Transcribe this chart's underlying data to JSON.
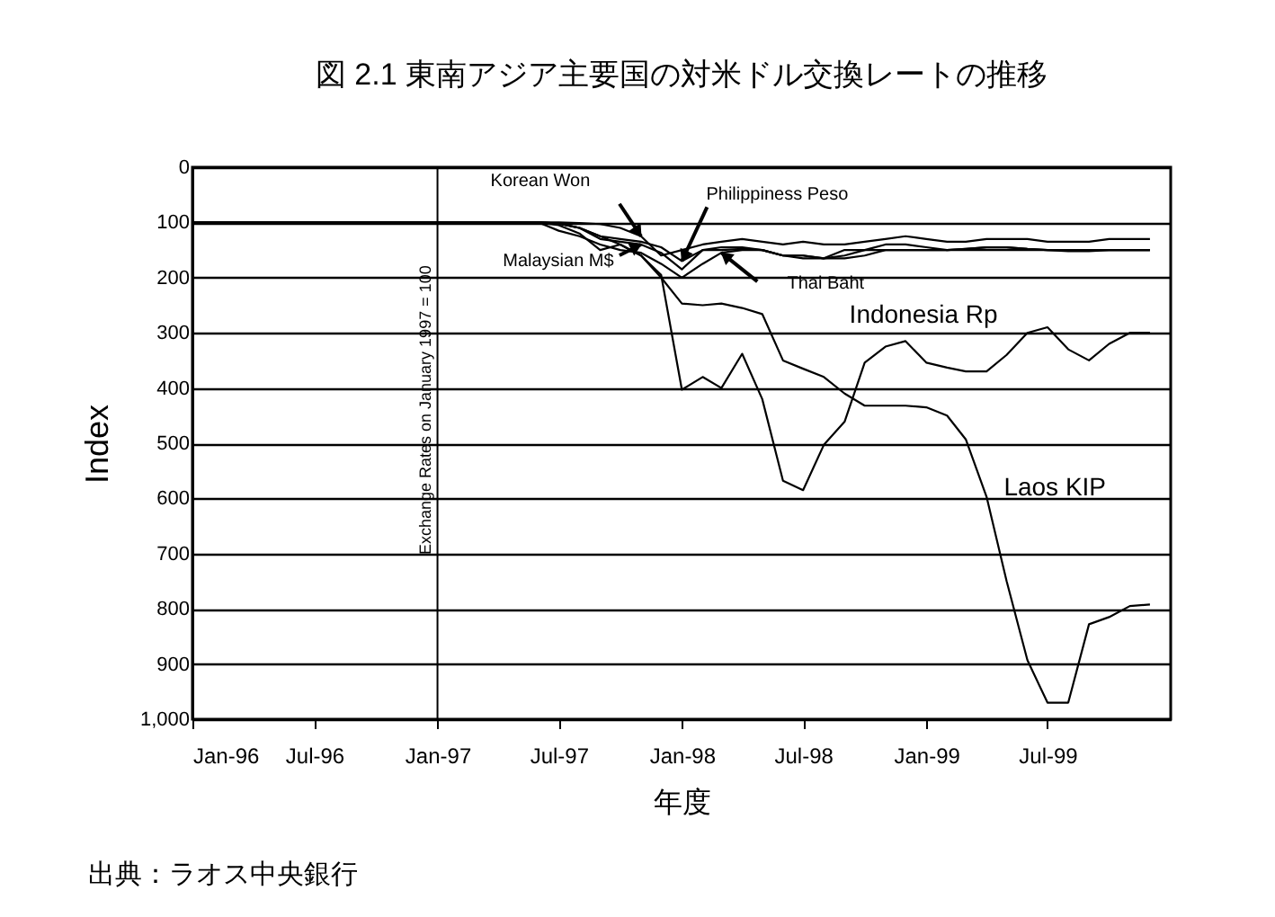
{
  "chart_data": {
    "type": "line",
    "title": "図 2.1  東南アジア主要国の対米ドル交換レートの推移",
    "xlabel": "年度",
    "ylabel": "Index",
    "annotations": [
      "出典：ラオス中央銀行"
    ],
    "x": [
      "1996-01",
      "1996-02",
      "1996-03",
      "1996-04",
      "1996-05",
      "1996-06",
      "1996-07",
      "1996-08",
      "1996-09",
      "1996-10",
      "1996-11",
      "1996-12",
      "1997-01",
      "1997-02",
      "1997-03",
      "1997-04",
      "1997-05",
      "1997-06",
      "1997-07",
      "1997-08",
      "1997-09",
      "1997-10",
      "1997-11",
      "1997-12",
      "1998-01",
      "1998-02",
      "1998-03",
      "1998-04",
      "1998-05",
      "1998-06",
      "1998-07",
      "1998-08",
      "1998-09",
      "1998-10",
      "1998-11",
      "1998-12",
      "1999-01",
      "1999-02",
      "1999-03",
      "1999-04",
      "1999-05",
      "1999-06",
      "1999-07",
      "1999-08",
      "1999-09",
      "1999-10",
      "1999-11",
      "1999-12"
    ],
    "series": [
      {
        "name": "Korean Won",
        "color": "#000000",
        "values": [
          100,
          100,
          100,
          100,
          100,
          100,
          100,
          100,
          100,
          100,
          100,
          100,
          100,
          100,
          100,
          100,
          100,
          100,
          100,
          101,
          103,
          110,
          125,
          160,
          150,
          140,
          135,
          130,
          135,
          140,
          135,
          140,
          140,
          135,
          130,
          125,
          130,
          135,
          135,
          130,
          130,
          130,
          135,
          135,
          135,
          130,
          130,
          130
        ]
      },
      {
        "name": "Philippiness Peso",
        "color": "#000000",
        "values": [
          100,
          100,
          100,
          100,
          100,
          100,
          100,
          100,
          100,
          100,
          100,
          100,
          100,
          100,
          100,
          100,
          100,
          100,
          102,
          110,
          125,
          130,
          135,
          145,
          170,
          150,
          150,
          148,
          150,
          160,
          160,
          165,
          165,
          160,
          150,
          150,
          150,
          150,
          148,
          145,
          145,
          148,
          150,
          152,
          152,
          150,
          150,
          150
        ]
      },
      {
        "name": "Malaysian M$",
        "color": "#000000",
        "values": [
          100,
          100,
          100,
          100,
          100,
          100,
          100,
          100,
          100,
          100,
          100,
          100,
          100,
          100,
          100,
          100,
          100,
          100,
          102,
          110,
          130,
          135,
          140,
          155,
          185,
          150,
          145,
          145,
          150,
          160,
          165,
          165,
          150,
          150,
          150,
          150,
          150,
          150,
          150,
          150,
          150,
          150,
          150,
          150,
          150,
          150,
          150,
          150
        ]
      },
      {
        "name": "Thai Baht",
        "color": "#000000",
        "values": [
          100,
          100,
          100,
          100,
          100,
          100,
          100,
          100,
          100,
          100,
          100,
          100,
          100,
          100,
          100,
          100,
          100,
          100,
          115,
          125,
          140,
          150,
          155,
          175,
          200,
          175,
          155,
          150,
          150,
          160,
          160,
          165,
          160,
          150,
          140,
          140,
          145,
          150,
          148,
          145,
          145,
          148,
          150,
          150,
          150,
          150,
          150,
          150
        ]
      },
      {
        "name": "Indonesia Rp",
        "color": "#000000",
        "values": [
          100,
          100,
          100,
          100,
          100,
          100,
          100,
          100,
          100,
          100,
          100,
          100,
          100,
          100,
          100,
          100,
          100,
          100,
          105,
          120,
          150,
          140,
          160,
          195,
          403,
          380,
          400,
          338,
          420,
          568,
          585,
          503,
          461,
          354,
          325,
          315,
          354,
          363,
          370,
          370,
          340,
          300,
          290,
          330,
          350,
          320,
          300,
          300
        ]
      },
      {
        "name": "Laos KIP",
        "color": "#000000",
        "values": [
          100,
          100,
          100,
          100,
          100,
          100,
          100,
          100,
          100,
          100,
          100,
          100,
          100,
          100,
          100,
          100,
          100,
          100,
          102,
          110,
          125,
          140,
          160,
          200,
          247,
          250,
          247,
          255,
          266,
          350,
          365,
          380,
          410,
          432,
          432,
          432,
          435,
          450,
          493,
          597,
          750,
          893,
          970,
          970,
          828,
          815,
          795,
          792
        ]
      }
    ],
    "xlim": [
      "1996-01",
      "2000-01"
    ],
    "xticks": [
      {
        "value": "1996-01",
        "label": "Jan-96"
      },
      {
        "value": "1996-07",
        "label": "Jul-96"
      },
      {
        "value": "1997-01",
        "label": "Jan-97"
      },
      {
        "value": "1997-07",
        "label": "Jul-97"
      },
      {
        "value": "1998-01",
        "label": "Jan-98"
      },
      {
        "value": "1998-07",
        "label": "Jul-98"
      },
      {
        "value": "1999-01",
        "label": "Jan-99"
      },
      {
        "value": "1999-07",
        "label": "Jul-99"
      }
    ],
    "ylim": [
      1000,
      0
    ],
    "yticks": [
      0,
      100,
      200,
      300,
      400,
      500,
      600,
      700,
      800,
      900,
      {
        "value": 1000,
        "label": "1,000"
      }
    ],
    "grid": "y",
    "marker": "none",
    "line_style": "solid",
    "ref_lines": [
      {
        "axis": "x",
        "value": "1997-01",
        "label": "Exchange Rates on January 1997 = 100",
        "color": "#000000"
      }
    ]
  }
}
